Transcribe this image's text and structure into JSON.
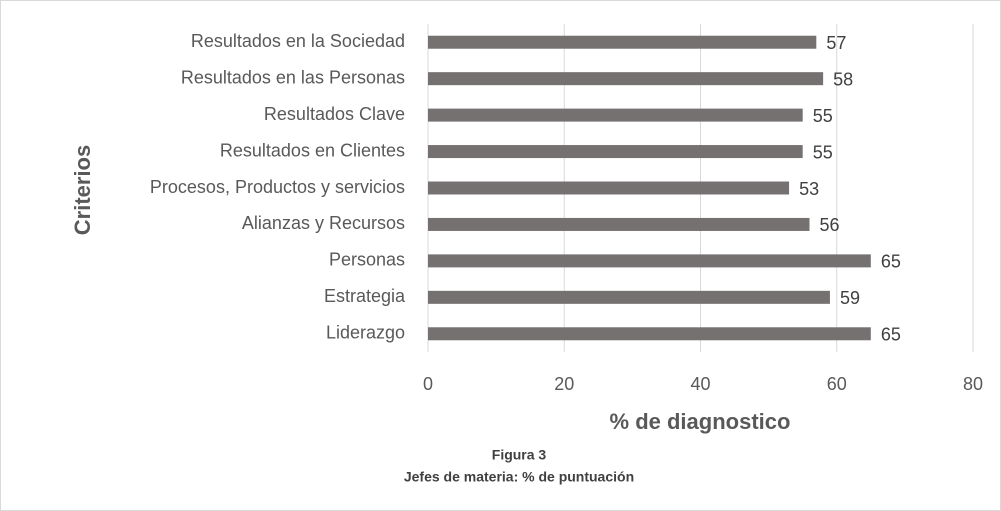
{
  "chart_data": {
    "type": "bar",
    "orientation": "horizontal",
    "title": "Figura 3",
    "subtitle": "Jefes de materia: % de puntuación",
    "xlabel": "% de diagnostico",
    "ylabel": "Criterios",
    "categories": [
      "Resultados en la Sociedad",
      "Resultados en las Personas",
      "Resultados Clave",
      "Resultados en Clientes",
      "Procesos, Productos y servicios",
      "Alianzas y Recursos",
      "Personas",
      "Estrategia",
      "Liderazgo"
    ],
    "values": [
      57,
      58,
      55,
      55,
      53,
      56,
      65,
      59,
      65
    ],
    "color": "#767171",
    "xlim": [
      0,
      80
    ],
    "xticks": [
      0,
      20,
      40,
      60,
      80
    ],
    "grid": true
  }
}
